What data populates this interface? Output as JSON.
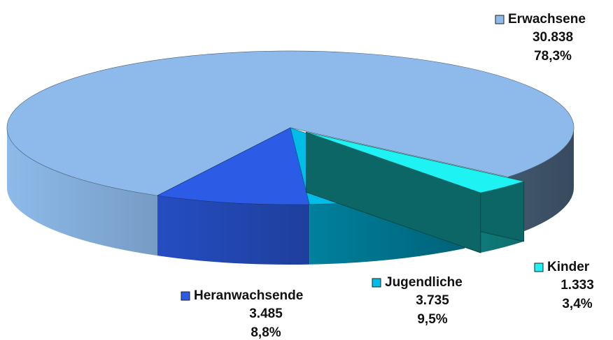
{
  "chart_data": {
    "type": "pie",
    "categories": [
      "Erwachsene",
      "Heranwachsende",
      "Jugendliche",
      "Kinder"
    ],
    "values": [
      30838,
      3485,
      3735,
      1333
    ],
    "value_labels": [
      "30.838",
      "3.485",
      "3.735",
      "1.333"
    ],
    "shares": [
      78.3,
      8.8,
      9.5,
      3.4
    ],
    "share_labels": [
      "78,3%",
      "8,8%",
      "9,5%",
      "3,4%"
    ],
    "colors": [
      "#8dbaea",
      "#2c5ce6",
      "#00bde8",
      "#1ef2f2"
    ]
  }
}
